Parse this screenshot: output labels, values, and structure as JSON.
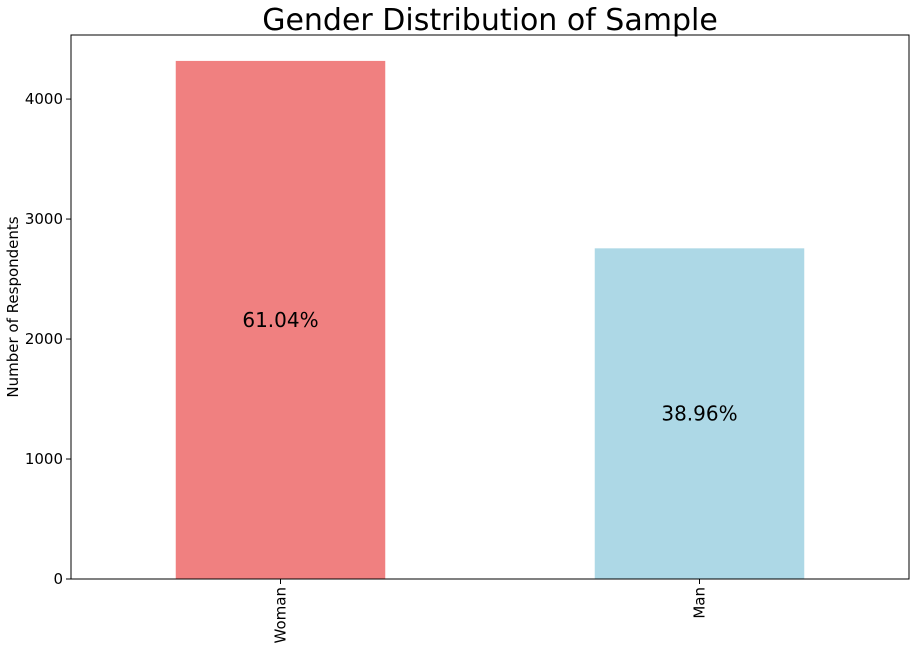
{
  "chart_data": {
    "type": "bar",
    "title": "Gender Distribution of Sample",
    "xlabel": "",
    "ylabel": "Number of Respondents",
    "categories": [
      "Woman",
      "Man"
    ],
    "values": [
      4318,
      2756
    ],
    "data_labels": [
      "61.04%",
      "38.96%"
    ],
    "colors": [
      "#f08080",
      "#add8e6"
    ],
    "ylim": [
      0,
      4534
    ],
    "yticks": [
      0,
      1000,
      2000,
      3000,
      4000
    ],
    "grid": false,
    "legend": "none"
  }
}
